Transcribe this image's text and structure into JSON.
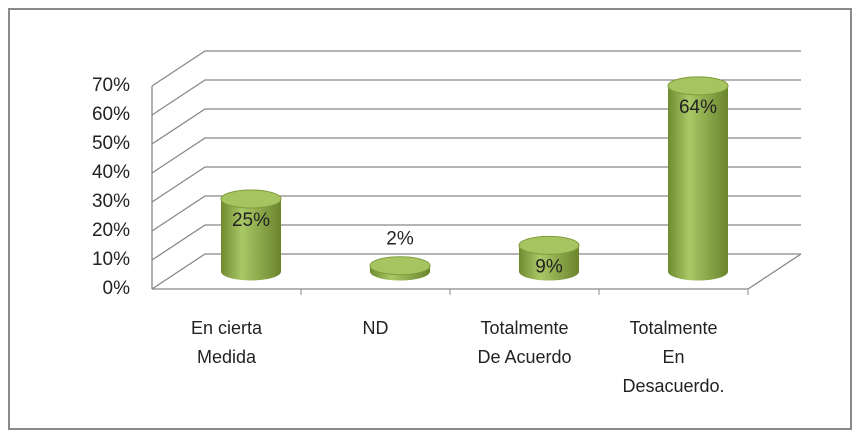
{
  "chart_data": {
    "type": "bar3d",
    "categories": [
      "En cierta Medida",
      "ND",
      "Totalmente De Acuerdo",
      "Totalmente En Desacuerdo."
    ],
    "values": [
      25,
      2,
      9,
      64
    ],
    "value_labels": [
      "25%",
      "2%",
      "9%",
      "64%"
    ],
    "color": "#9bbb59",
    "ylim": [
      0,
      70
    ],
    "yticks": [
      {
        "value": 0,
        "label": "0%"
      },
      {
        "value": 10,
        "label": "10%"
      },
      {
        "value": 20,
        "label": "20%"
      },
      {
        "value": 30,
        "label": "30%"
      },
      {
        "value": 40,
        "label": "40%"
      },
      {
        "value": 50,
        "label": "50%"
      },
      {
        "value": 60,
        "label": "60%"
      },
      {
        "value": 70,
        "label": "70%"
      }
    ],
    "grid": true
  }
}
